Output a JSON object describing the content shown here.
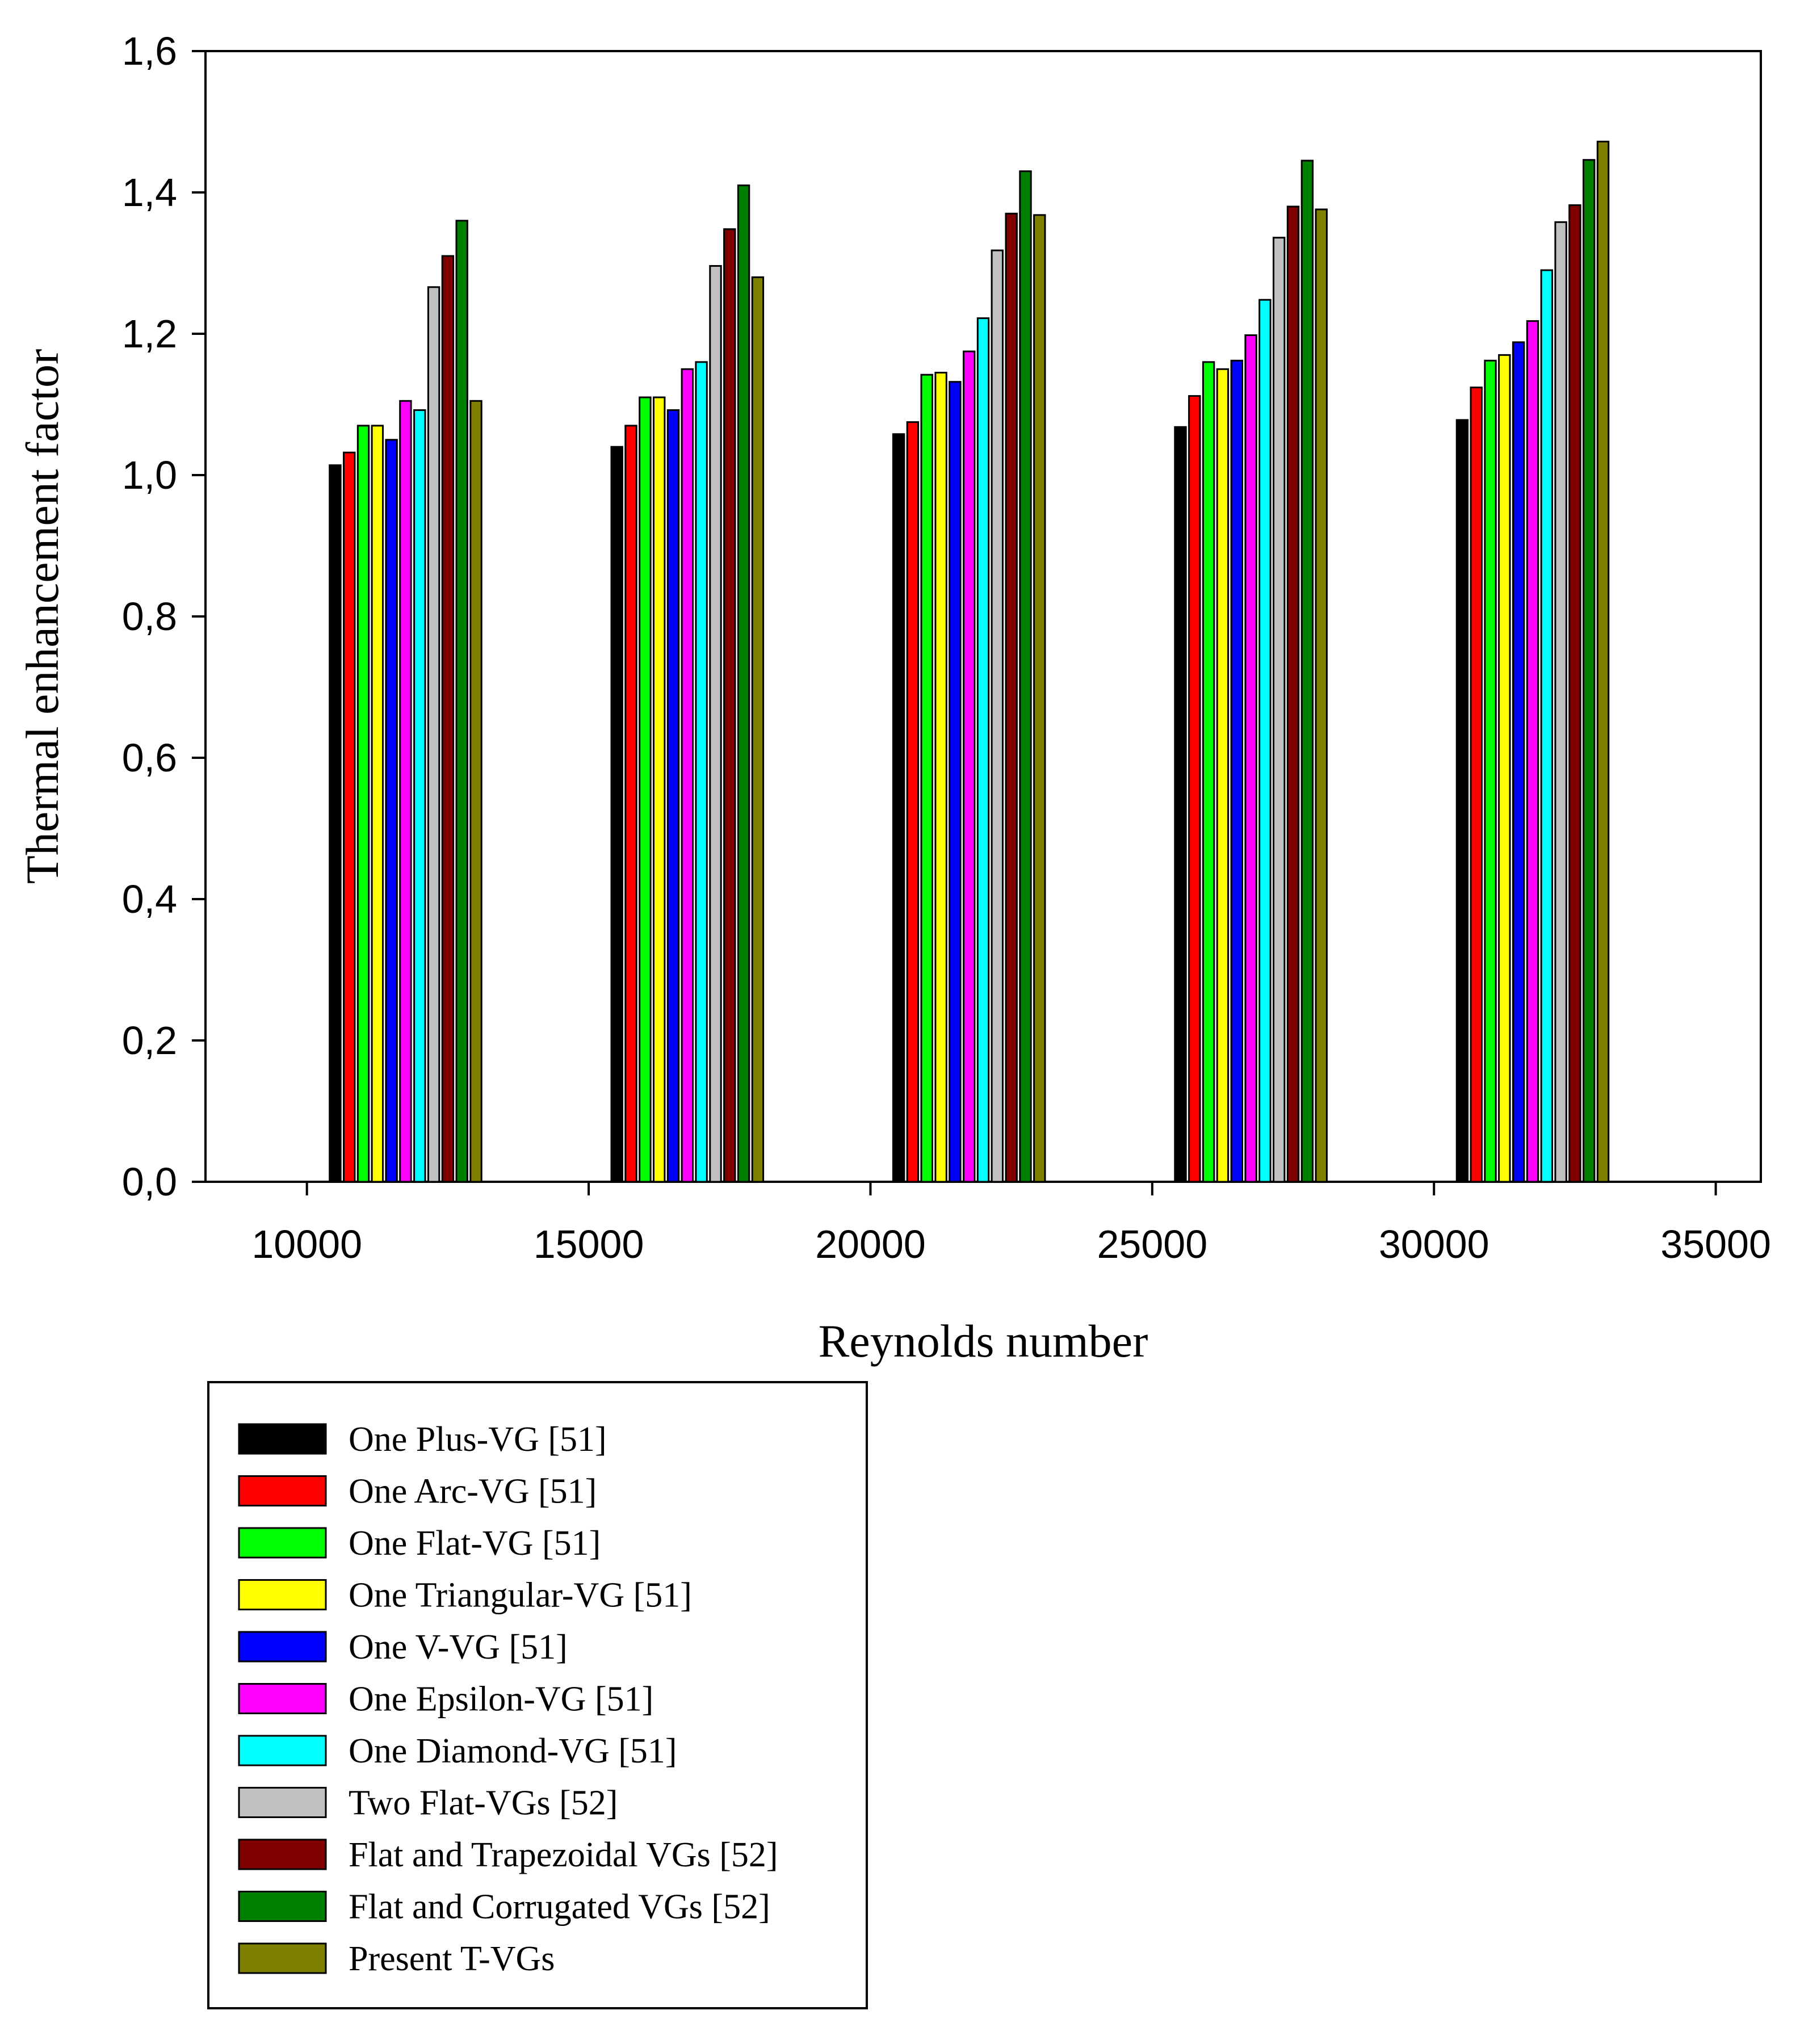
{
  "chart_data": {
    "type": "bar",
    "title": "",
    "xlabel": "Reynolds number",
    "ylabel": "Thermal enhancement factor",
    "xlim": [
      8200,
      35800
    ],
    "ylim": [
      0,
      1.6
    ],
    "x_ticks": [
      10000,
      15000,
      20000,
      25000,
      30000,
      35000
    ],
    "x_tick_labels": [
      "10000",
      "15000",
      "20000",
      "25000",
      "30000",
      "35000"
    ],
    "y_ticks": [
      0,
      0.2,
      0.4,
      0.6,
      0.8,
      1.0,
      1.2,
      1.4,
      1.6
    ],
    "y_tick_labels": [
      "0,0",
      "0,2",
      "0,4",
      "0,6",
      "0,8",
      "1,0",
      "1,2",
      "1,4",
      "1,6"
    ],
    "categories": [
      10000,
      15000,
      20000,
      25000,
      30000
    ],
    "group_start_offset": 500,
    "bar_spacing": 250,
    "legend_position": "bottom-left",
    "series": [
      {
        "name": "One Plus-VG [51]",
        "color": "#000000",
        "values": [
          1.014,
          1.04,
          1.058,
          1.068,
          1.078
        ]
      },
      {
        "name": "One Arc-VG [51]",
        "color": "#ff0000",
        "values": [
          1.032,
          1.07,
          1.075,
          1.112,
          1.124
        ]
      },
      {
        "name": "One Flat-VG [51]",
        "color": "#00ff00",
        "values": [
          1.07,
          1.11,
          1.142,
          1.16,
          1.162
        ]
      },
      {
        "name": "One Triangular-VG [51]",
        "color": "#ffff00",
        "values": [
          1.07,
          1.11,
          1.145,
          1.15,
          1.17
        ]
      },
      {
        "name": "One V-VG [51]",
        "color": "#0000ff",
        "values": [
          1.05,
          1.092,
          1.132,
          1.162,
          1.188
        ]
      },
      {
        "name": "One Epsilon-VG [51]",
        "color": "#ff00ff",
        "values": [
          1.105,
          1.15,
          1.175,
          1.198,
          1.218
        ]
      },
      {
        "name": "One Diamond-VG [51]",
        "color": "#00ffff",
        "values": [
          1.092,
          1.16,
          1.222,
          1.248,
          1.29
        ]
      },
      {
        "name": "Two Flat-VGs [52]",
        "color": "#c0c0c0",
        "values": [
          1.266,
          1.296,
          1.318,
          1.336,
          1.358
        ]
      },
      {
        "name": "Flat and Trapezoidal VGs [52]",
        "color": "#800000",
        "values": [
          1.31,
          1.348,
          1.37,
          1.38,
          1.382
        ]
      },
      {
        "name": "Flat and Corrugated VGs [52]",
        "color": "#008000",
        "values": [
          1.36,
          1.41,
          1.43,
          1.445,
          1.446
        ]
      },
      {
        "name": "Present T-VGs",
        "color": "#808000",
        "values": [
          1.105,
          1.28,
          1.368,
          1.376,
          1.472
        ]
      }
    ]
  }
}
